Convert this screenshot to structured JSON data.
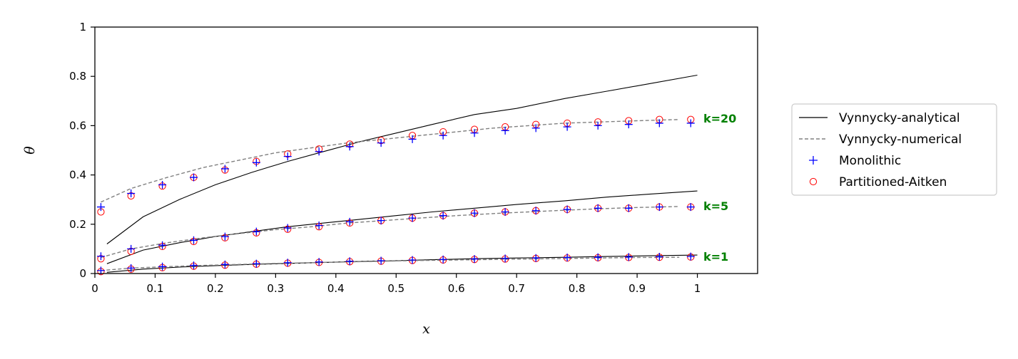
{
  "chart_data": {
    "type": "line",
    "xlabel": "x",
    "ylabel": "θ",
    "xlim": [
      0,
      1.1
    ],
    "ylim": [
      0,
      1
    ],
    "xticks": [
      {
        "value": 0,
        "label": "0"
      },
      {
        "value": 0.1,
        "label": "0.1"
      },
      {
        "value": 0.2,
        "label": "0.2"
      },
      {
        "value": 0.3,
        "label": "0.3"
      },
      {
        "value": 0.4,
        "label": "0.4"
      },
      {
        "value": 0.5,
        "label": "0.5"
      },
      {
        "value": 0.6,
        "label": "0.6"
      },
      {
        "value": 0.7,
        "label": "0.7"
      },
      {
        "value": 0.8,
        "label": "0.8"
      },
      {
        "value": 0.9,
        "label": "0.9"
      },
      {
        "value": 1,
        "label": "1"
      }
    ],
    "yticks": [
      {
        "value": 0,
        "label": "0"
      },
      {
        "value": 0.2,
        "label": "0.2"
      },
      {
        "value": 0.4,
        "label": "0.4"
      },
      {
        "value": 0.6,
        "label": "0.6"
      },
      {
        "value": 0.8,
        "label": "0.8"
      },
      {
        "value": 1,
        "label": "1"
      }
    ],
    "legend": {
      "placement": "outside-right",
      "entries": [
        {
          "label": "Vynnycky-analytical",
          "style": "solid",
          "color": "#000000"
        },
        {
          "label": "Vynnycky-numerical",
          "style": "dashed",
          "color": "#808080"
        },
        {
          "label": "Monolithic",
          "style": "plus",
          "color": "#0000ff"
        },
        {
          "label": "Partitioned-Aitken",
          "style": "circle",
          "color": "#ff0000"
        }
      ]
    },
    "x_points": [
      0.01,
      0.06,
      0.112,
      0.164,
      0.216,
      0.268,
      0.32,
      0.372,
      0.423,
      0.475,
      0.527,
      0.578,
      0.63,
      0.681,
      0.732,
      0.784,
      0.835,
      0.886,
      0.937,
      0.989
    ],
    "x_analytical": [
      0.02,
      0.08,
      0.14,
      0.2,
      0.26,
      0.32,
      0.38,
      0.44,
      0.5,
      0.56,
      0.63,
      0.7,
      0.78,
      0.85,
      0.92,
      1.0
    ],
    "x_numerical": [
      0.01,
      0.06,
      0.12,
      0.18,
      0.24,
      0.3,
      0.36,
      0.42,
      0.48,
      0.54,
      0.6,
      0.66,
      0.72,
      0.78,
      0.84,
      0.9,
      0.97
    ],
    "groups": [
      {
        "label": "k=20",
        "label_color": "#008000",
        "label_anchor": [
          1.01,
          0.63
        ],
        "analytical": [
          0.12,
          0.23,
          0.3,
          0.36,
          0.41,
          0.455,
          0.495,
          0.535,
          0.57,
          0.605,
          0.645,
          0.67,
          0.71,
          0.74,
          0.77,
          0.805
        ],
        "numerical": [
          0.29,
          0.345,
          0.39,
          0.43,
          0.46,
          0.49,
          0.51,
          0.53,
          0.545,
          0.56,
          0.575,
          0.59,
          0.6,
          0.61,
          0.615,
          0.62,
          0.625
        ],
        "monolithic": [
          0.27,
          0.325,
          0.36,
          0.39,
          0.425,
          0.45,
          0.475,
          0.495,
          0.515,
          0.53,
          0.545,
          0.56,
          0.57,
          0.58,
          0.59,
          0.595,
          0.6,
          0.605,
          0.61,
          0.61
        ],
        "partitioned": [
          0.25,
          0.315,
          0.355,
          0.39,
          0.42,
          0.455,
          0.485,
          0.505,
          0.525,
          0.54,
          0.56,
          0.575,
          0.585,
          0.595,
          0.605,
          0.61,
          0.615,
          0.62,
          0.625,
          0.625
        ]
      },
      {
        "label": "k=5",
        "label_color": "#008000",
        "label_anchor": [
          1.01,
          0.275
        ],
        "analytical": [
          0.04,
          0.095,
          0.125,
          0.15,
          0.17,
          0.19,
          0.205,
          0.22,
          0.235,
          0.25,
          0.265,
          0.28,
          0.295,
          0.31,
          0.322,
          0.335
        ],
        "numerical": [
          0.065,
          0.1,
          0.125,
          0.145,
          0.162,
          0.178,
          0.19,
          0.205,
          0.215,
          0.225,
          0.235,
          0.243,
          0.25,
          0.257,
          0.263,
          0.268,
          0.272
        ],
        "monolithic": [
          0.07,
          0.1,
          0.115,
          0.135,
          0.15,
          0.17,
          0.185,
          0.195,
          0.21,
          0.215,
          0.225,
          0.235,
          0.245,
          0.25,
          0.255,
          0.26,
          0.265,
          0.265,
          0.27,
          0.27
        ],
        "partitioned": [
          0.06,
          0.09,
          0.11,
          0.13,
          0.145,
          0.165,
          0.18,
          0.19,
          0.205,
          0.215,
          0.225,
          0.235,
          0.245,
          0.25,
          0.255,
          0.26,
          0.265,
          0.265,
          0.27,
          0.27
        ]
      },
      {
        "label": "k=1",
        "label_color": "#008000",
        "label_anchor": [
          1.01,
          0.07
        ],
        "analytical": [
          0.005,
          0.018,
          0.026,
          0.032,
          0.037,
          0.041,
          0.045,
          0.049,
          0.052,
          0.056,
          0.06,
          0.063,
          0.066,
          0.069,
          0.072,
          0.075
        ],
        "numerical": [
          0.012,
          0.022,
          0.028,
          0.033,
          0.037,
          0.041,
          0.044,
          0.047,
          0.05,
          0.053,
          0.055,
          0.057,
          0.059,
          0.061,
          0.063,
          0.065,
          0.066
        ],
        "monolithic": [
          0.012,
          0.022,
          0.028,
          0.033,
          0.037,
          0.04,
          0.044,
          0.047,
          0.05,
          0.052,
          0.055,
          0.057,
          0.059,
          0.061,
          0.063,
          0.065,
          0.066,
          0.067,
          0.068,
          0.069
        ],
        "partitioned": [
          0.008,
          0.018,
          0.024,
          0.03,
          0.034,
          0.038,
          0.042,
          0.045,
          0.048,
          0.05,
          0.053,
          0.055,
          0.057,
          0.059,
          0.061,
          0.063,
          0.064,
          0.065,
          0.066,
          0.067
        ]
      }
    ]
  }
}
